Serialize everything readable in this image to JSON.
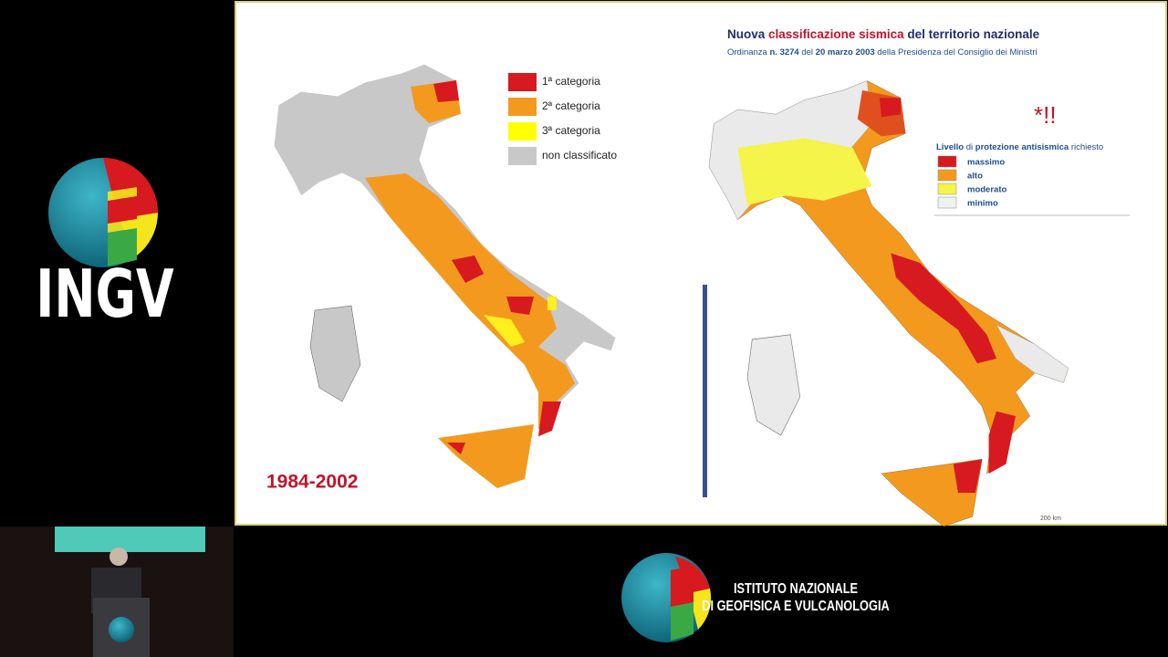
{
  "sidebar": {
    "logo_text": "INGV"
  },
  "slide": {
    "title_parts": [
      "Nuova",
      "classificazione sismica",
      "del territorio nazionale"
    ],
    "subtitle_parts": [
      "Ordinanza",
      "n. 3274",
      "del",
      "20 marzo 2003",
      "della Presidenza del Consiglio dei Ministri"
    ],
    "left_legend": [
      "1ª categoria",
      "2ª categoria",
      "3ª categoria",
      "non classificato"
    ],
    "left_period": "1984-2002",
    "annotation": "*!!",
    "right_legend_title_parts": [
      "Livello",
      "di",
      "protezione antisismica",
      "richiesto"
    ],
    "right_legend": [
      "massimo",
      "alto",
      "moderato",
      "minimo"
    ],
    "scale": "200 km"
  },
  "footer": {
    "line1": "ISTITUTO NAZIONALE",
    "line2": "DI GEOFISICA E VULCANOLOGIA"
  }
}
